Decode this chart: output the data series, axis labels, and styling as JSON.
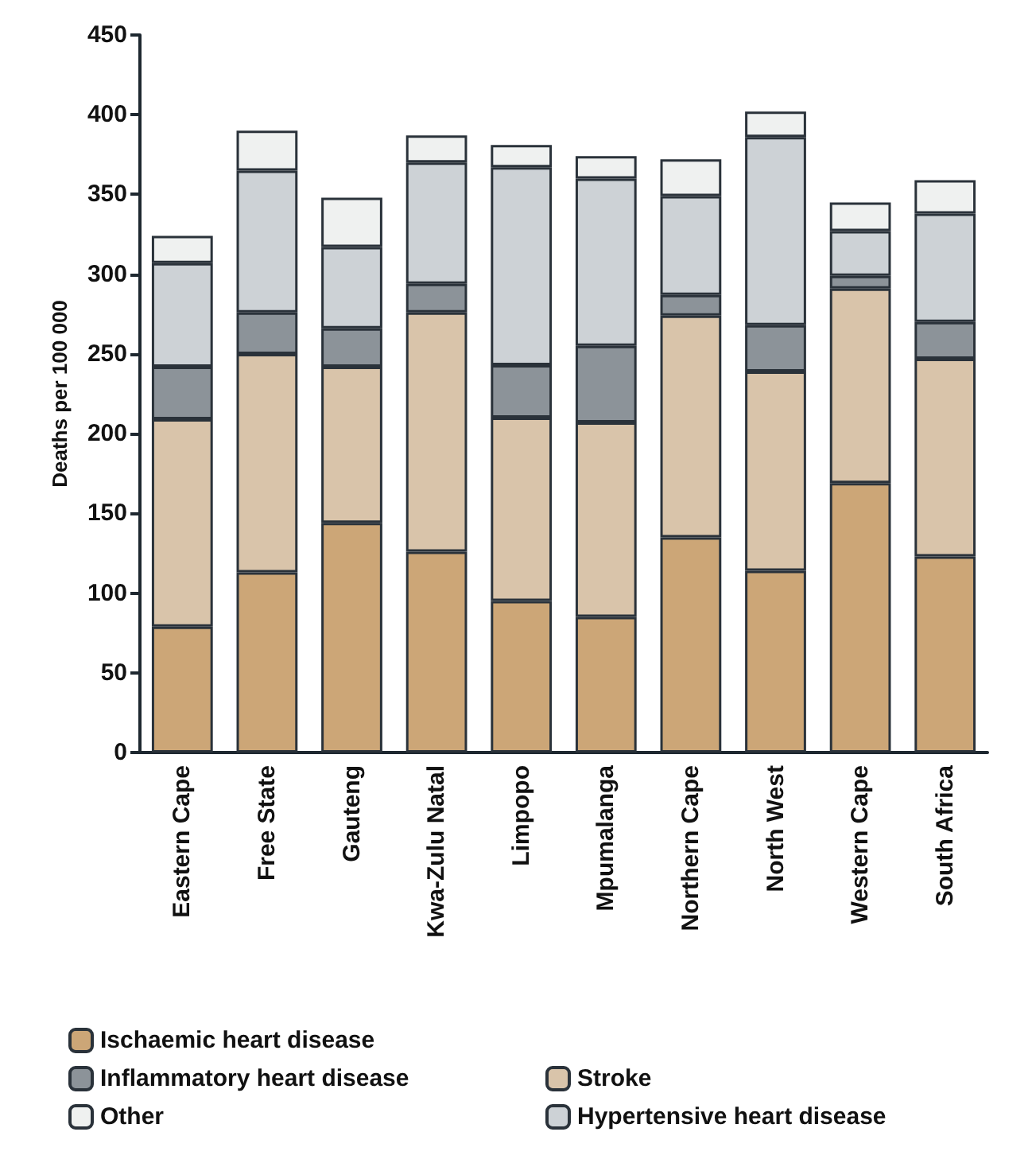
{
  "chart_data": {
    "type": "bar",
    "stacked": true,
    "ylabel": "Deaths per 100 000",
    "categories": [
      "Eastern Cape",
      "Free State",
      "Gauteng",
      "Kwa-Zulu Natal",
      "Limpopo",
      "Mpumalanga",
      "Northern Cape",
      "North West",
      "Western Cape",
      "South Africa"
    ],
    "series": [
      {
        "name": "Ischaemic heart disease",
        "color": "#cca677",
        "values": [
          79,
          113,
          144,
          126,
          95,
          85,
          135,
          114,
          169,
          123
        ]
      },
      {
        "name": "Stroke",
        "color": "#d9c4aa",
        "values": [
          130,
          137,
          98,
          150,
          115,
          122,
          139,
          125,
          122,
          124
        ]
      },
      {
        "name": "Inflammatory heart disease",
        "color": "#8c9399",
        "values": [
          33,
          26,
          24,
          18,
          33,
          48,
          13,
          29,
          8,
          23
        ]
      },
      {
        "name": "Hypertensive heart disease",
        "color": "#cdd2d6",
        "values": [
          65,
          89,
          51,
          76,
          124,
          105,
          62,
          118,
          28,
          68
        ]
      },
      {
        "name": "Other",
        "color": "#eff1f0",
        "values": [
          17,
          25,
          31,
          17,
          14,
          14,
          23,
          16,
          18,
          21
        ]
      }
    ],
    "ylim": [
      0,
      450
    ],
    "yticks": [
      0,
      50,
      100,
      150,
      200,
      250,
      300,
      350,
      400,
      450
    ],
    "grid": false,
    "legend": "bottom"
  }
}
